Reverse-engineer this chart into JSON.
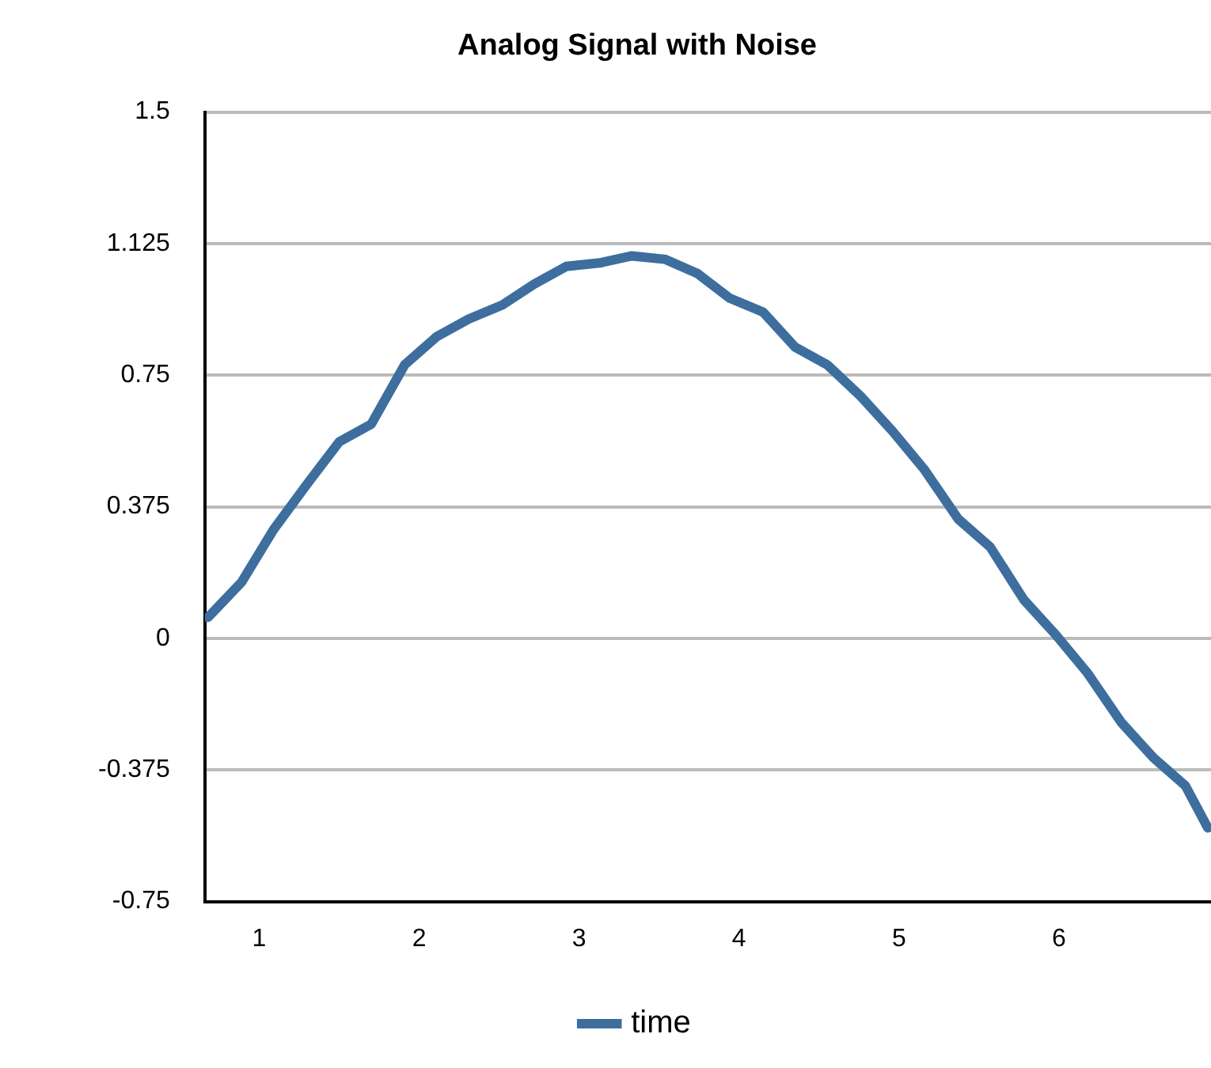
{
  "chart_data": {
    "type": "line",
    "title": "Analog Signal with Noise",
    "x": [
      0.68,
      0.89,
      1.09,
      1.3,
      1.5,
      1.7,
      1.91,
      2.11,
      2.31,
      2.52,
      2.72,
      2.92,
      3.13,
      3.33,
      3.54,
      3.74,
      3.94,
      4.15,
      4.35,
      4.55,
      4.76,
      4.96,
      5.16,
      5.37,
      5.57,
      5.78,
      5.98,
      6.18,
      6.39,
      6.59,
      6.79,
      6.93
    ],
    "series": [
      {
        "name": "time",
        "color": "#3d6e9e",
        "values": [
          0.06,
          0.16,
          0.31,
          0.44,
          0.56,
          0.61,
          0.78,
          0.86,
          0.91,
          0.95,
          1.01,
          1.06,
          1.07,
          1.09,
          1.08,
          1.04,
          0.97,
          0.93,
          0.83,
          0.78,
          0.69,
          0.59,
          0.48,
          0.34,
          0.26,
          0.11,
          0.01,
          -0.1,
          -0.24,
          -0.34,
          -0.42,
          -0.54
        ]
      }
    ],
    "xlim": [
      0.66,
      6.95
    ],
    "xticks": [
      1,
      2,
      3,
      4,
      5,
      6
    ],
    "ylim": [
      -0.75,
      1.5
    ],
    "yticks": [
      -0.75,
      -0.375,
      0,
      0.375,
      0.75,
      1.125,
      1.5
    ],
    "grid": "y",
    "legend": "bottom",
    "marker": "none",
    "line_style": "solid"
  }
}
